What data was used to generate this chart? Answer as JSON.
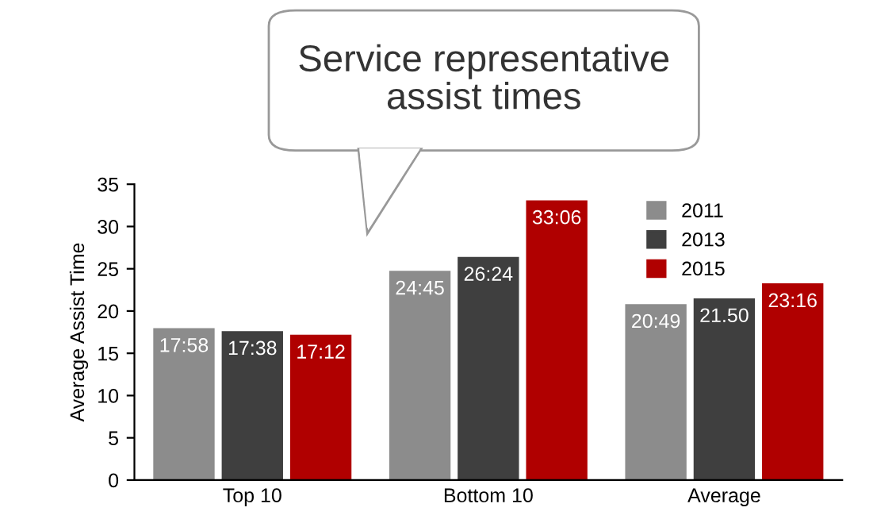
{
  "chart_data": {
    "type": "bar",
    "title": "Service representative\nassist times",
    "ylabel": "Average Assist Time",
    "categories": [
      "Top 10",
      "Bottom 10",
      "Average"
    ],
    "series": [
      {
        "name": "2011",
        "color": "#8c8c8c",
        "values": [
          17.97,
          24.75,
          20.82
        ],
        "value_labels": [
          "17:58",
          "24:45",
          "20:49"
        ]
      },
      {
        "name": "2013",
        "color": "#3f3f3f",
        "values": [
          17.63,
          26.4,
          21.5
        ],
        "value_labels": [
          "17:38",
          "26:24",
          "21.50"
        ]
      },
      {
        "name": "2015",
        "color": "#b00000",
        "values": [
          17.2,
          33.1,
          23.27
        ],
        "value_labels": [
          "17:12",
          "33:06",
          "23:16"
        ]
      }
    ],
    "ylim": [
      0,
      35
    ],
    "yticks": [
      0,
      5,
      10,
      15,
      20,
      25,
      30,
      35
    ],
    "grid": false,
    "legend": "top right"
  }
}
